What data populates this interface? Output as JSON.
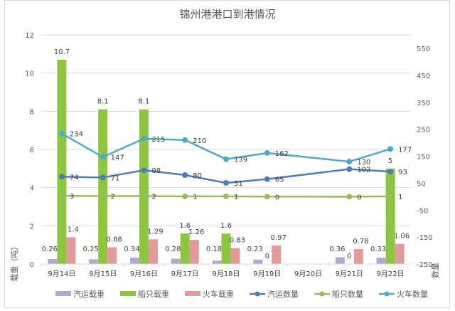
{
  "chart_data": {
    "type": "bar+line",
    "title": "锦州港港口到港情况",
    "ylabel": "载重（吨）",
    "y2label": "数量",
    "ylim": [
      0,
      12
    ],
    "yticks": [
      0,
      2,
      4,
      6,
      8,
      10,
      12
    ],
    "y2lim": [
      -250,
      550
    ],
    "y2ticks": [
      -250,
      -150,
      -50,
      50,
      150,
      250,
      350,
      450,
      550
    ],
    "grid": true,
    "legend": "bottom",
    "categories": [
      "9月14日",
      "9月15日",
      "9月16日",
      "9月17日",
      "9月18日",
      "9月19日",
      "9月20日",
      "9月21日",
      "9月22日"
    ],
    "series": [
      {
        "name": "汽运载重",
        "type": "bar",
        "axis": "left",
        "color": "#b4a7d6",
        "values": [
          0.26,
          0.25,
          0.34,
          0.28,
          0.18,
          0.23,
          null,
          0.36,
          0.33
        ]
      },
      {
        "name": "船只载重",
        "type": "bar",
        "axis": "left",
        "color": "#8cc63f",
        "values": [
          10.7,
          8.1,
          8.1,
          1.6,
          1.6,
          0,
          null,
          0,
          5
        ]
      },
      {
        "name": "火车载重",
        "type": "bar",
        "axis": "left",
        "color": "#e39a98",
        "values": [
          1.4,
          0.88,
          1.29,
          1.26,
          0.83,
          0.97,
          null,
          0.78,
          1.06
        ]
      },
      {
        "name": "汽运数量",
        "type": "line",
        "axis": "right",
        "color": "#4a7ebb",
        "values": [
          74,
          71,
          98,
          80,
          51,
          65,
          null,
          102,
          93
        ]
      },
      {
        "name": "船只数量",
        "type": "line",
        "axis": "right",
        "color": "#9bbb59",
        "values": [
          3,
          2,
          2,
          1,
          1,
          0,
          null,
          0,
          1
        ]
      },
      {
        "name": "火车数量",
        "type": "line",
        "axis": "right",
        "color": "#4bacc6",
        "values": [
          234,
          147,
          215,
          210,
          139,
          162,
          null,
          130,
          177
        ]
      }
    ]
  }
}
